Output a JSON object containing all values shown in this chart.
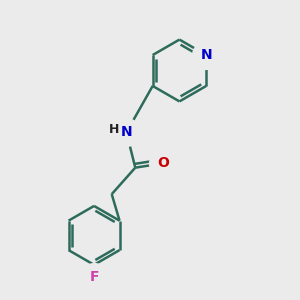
{
  "bg_color": "#ebebeb",
  "bond_color": "#2d6b5a",
  "N_color": "#0000cc",
  "O_color": "#cc0000",
  "F_color": "#cc44aa",
  "line_width": 1.8,
  "fig_size": [
    3.0,
    3.0
  ],
  "dpi": 100,
  "xlim": [
    0,
    10
  ],
  "ylim": [
    0,
    10
  ]
}
